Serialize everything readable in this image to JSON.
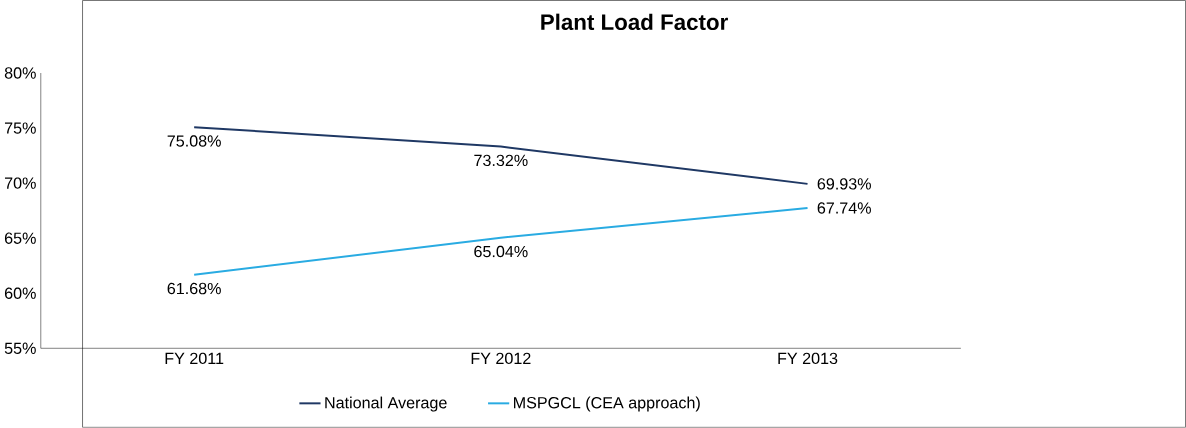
{
  "chart_data": {
    "type": "line",
    "title": "Plant Load Factor",
    "categories": [
      "FY 2011",
      "FY 2012",
      "FY 2013"
    ],
    "series": [
      {
        "name": "National Average",
        "color": "#1f3864",
        "values": [
          75.08,
          73.32,
          69.93
        ],
        "value_labels": [
          "75.08%",
          "73.32%",
          "69.93%"
        ]
      },
      {
        "name": "MSPGCL (CEA approach)",
        "color": "#29abe2",
        "values": [
          61.68,
          65.04,
          67.74
        ],
        "value_labels": [
          "61.68%",
          "65.04%",
          "67.74%"
        ]
      }
    ],
    "ylim": [
      55,
      80
    ],
    "yticks": [
      {
        "value": 55,
        "label": "55%"
      },
      {
        "value": 60,
        "label": "60%"
      },
      {
        "value": 65,
        "label": "65%"
      },
      {
        "value": 70,
        "label": "70%"
      },
      {
        "value": 75,
        "label": "75%"
      },
      {
        "value": 80,
        "label": "80%"
      }
    ],
    "grid": false,
    "legend": "bottom",
    "marker": "none",
    "line_style": "solid"
  }
}
